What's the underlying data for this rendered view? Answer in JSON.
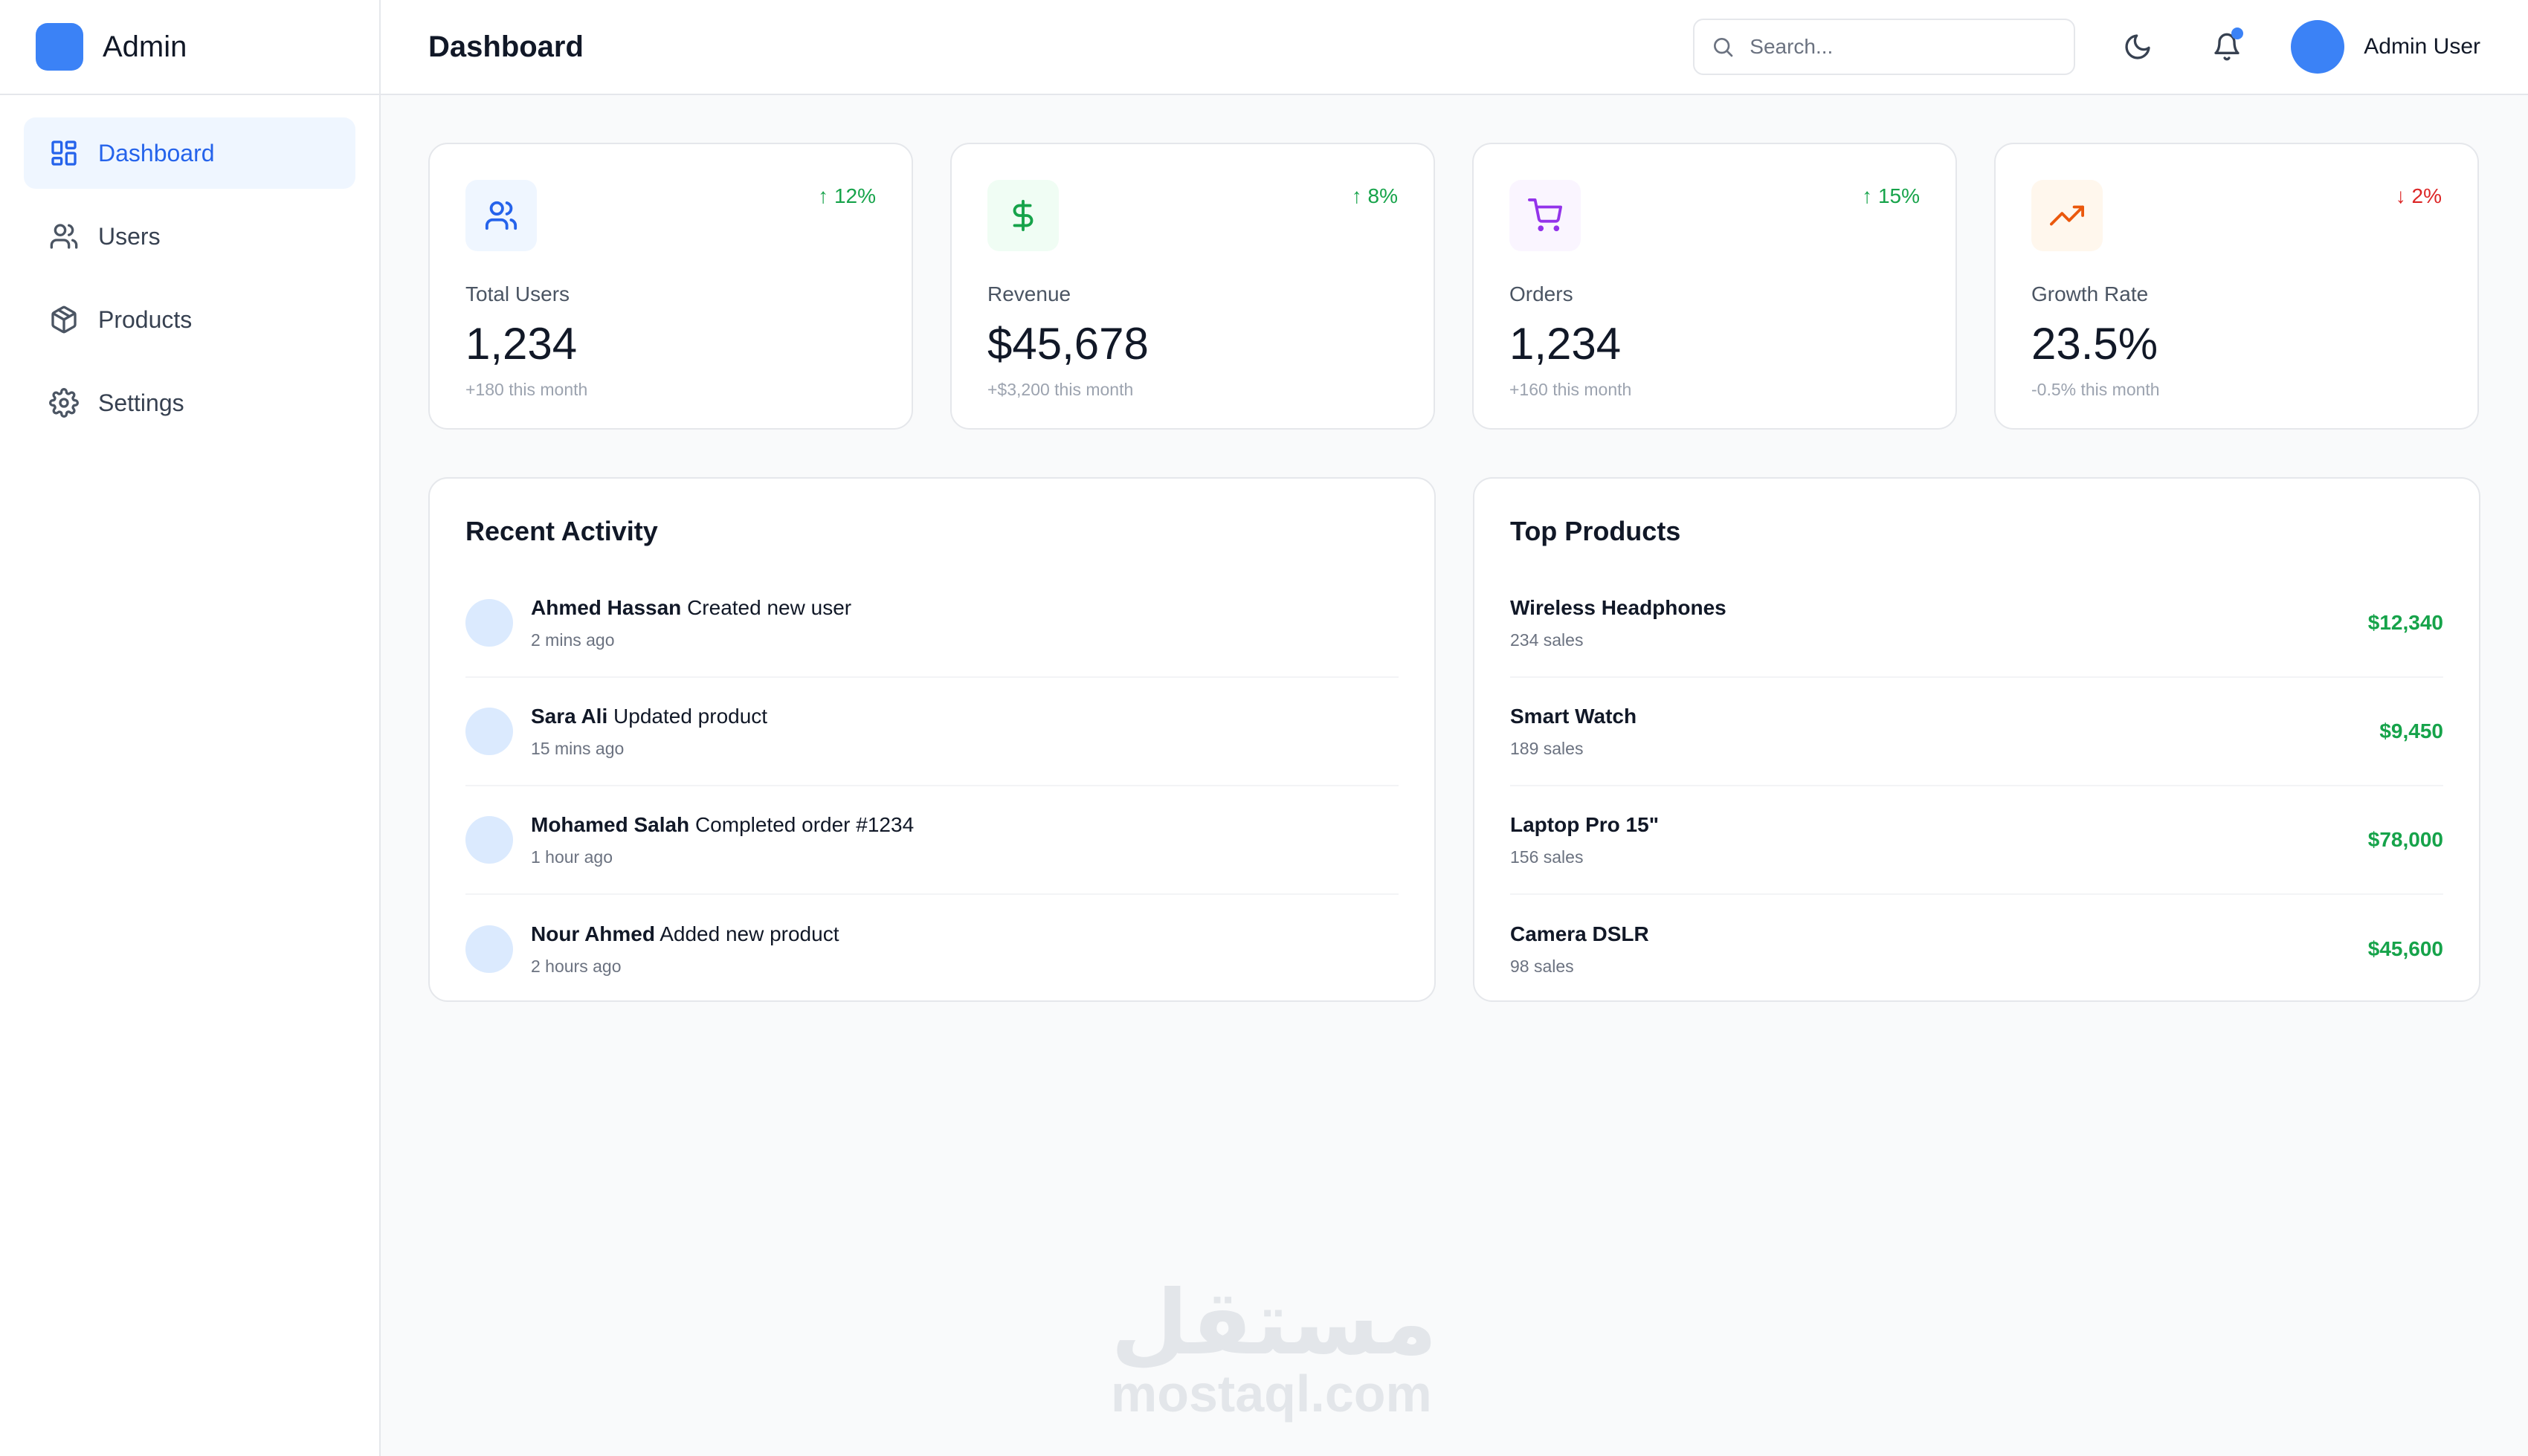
{
  "brand": {
    "name": "Admin"
  },
  "sidebar": {
    "items": [
      {
        "label": "Dashboard",
        "icon": "dashboard-icon",
        "active": true
      },
      {
        "label": "Users",
        "icon": "users-icon",
        "active": false
      },
      {
        "label": "Products",
        "icon": "box-icon",
        "active": false
      },
      {
        "label": "Settings",
        "icon": "gear-icon",
        "active": false
      }
    ]
  },
  "header": {
    "title": "Dashboard",
    "search_placeholder": "Search...",
    "user_name": "Admin User",
    "has_notification": true
  },
  "stats": [
    {
      "label": "Total Users",
      "value": "1,234",
      "change": "↑ 12%",
      "sub": "+180 this month",
      "icon": "users-icon",
      "trend": "up",
      "icon_color": "#2563eb",
      "icon_bg": "#eff6ff"
    },
    {
      "label": "Revenue",
      "value": "$45,678",
      "change": "↑ 8%",
      "sub": "+$3,200 this month",
      "icon": "dollar-icon",
      "trend": "up",
      "icon_color": "#16a34a",
      "icon_bg": "#f0fdf4"
    },
    {
      "label": "Orders",
      "value": "1,234",
      "change": "↑ 15%",
      "sub": "+160 this month",
      "icon": "cart-icon",
      "trend": "up",
      "icon_color": "#9333ea",
      "icon_bg": "#faf5ff"
    },
    {
      "label": "Growth Rate",
      "value": "23.5%",
      "change": "↓ 2%",
      "sub": "-0.5% this month",
      "icon": "trending-up-icon",
      "trend": "down",
      "icon_color": "#ea580c",
      "icon_bg": "#fff7ed"
    }
  ],
  "recent_activity": {
    "title": "Recent Activity",
    "items": [
      {
        "user": "Ahmed Hassan",
        "action": "Created new user",
        "time": "2 mins ago"
      },
      {
        "user": "Sara Ali",
        "action": "Updated product",
        "time": "15 mins ago"
      },
      {
        "user": "Mohamed Salah",
        "action": "Completed order #1234",
        "time": "1 hour ago"
      },
      {
        "user": "Nour Ahmed",
        "action": "Added new product",
        "time": "2 hours ago"
      }
    ]
  },
  "top_products": {
    "title": "Top Products",
    "items": [
      {
        "name": "Wireless Headphones",
        "sales": "234 sales",
        "amount": "$12,340"
      },
      {
        "name": "Smart Watch",
        "sales": "189 sales",
        "amount": "$9,450"
      },
      {
        "name": "Laptop Pro 15\"",
        "sales": "156 sales",
        "amount": "$78,000"
      },
      {
        "name": "Camera DSLR",
        "sales": "98 sales",
        "amount": "$45,600"
      }
    ]
  },
  "colors": {
    "accent": "#3b82f6",
    "trend_up": "#16a34a",
    "trend_down": "#dc2626",
    "amount": "#16a34a"
  },
  "watermark": {
    "mark": "مستقل",
    "url": "mostaql.com"
  }
}
